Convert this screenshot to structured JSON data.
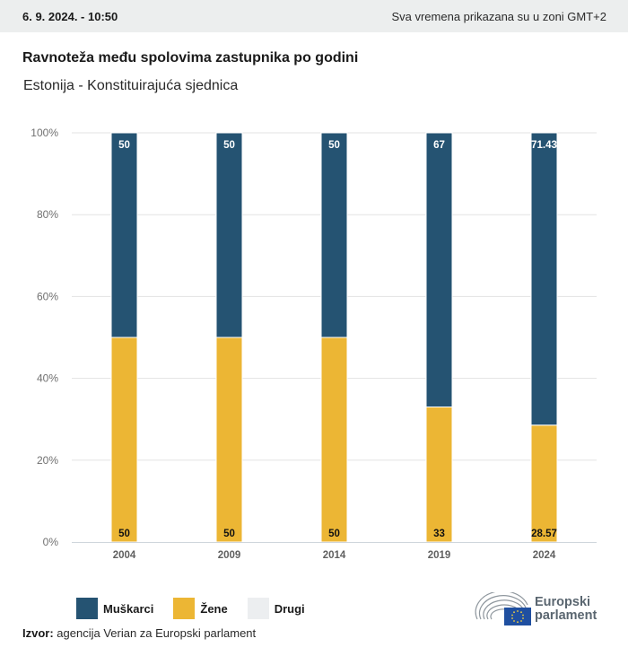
{
  "topbar": {
    "date": "6. 9. 2024. - 10:50",
    "timezone_note": "Sva vremena prikazana su u zoni GMT+2"
  },
  "header": {
    "title": "Ravnoteža među spolovima zastupnika po godini",
    "subtitle": "Estonija - Konstituirajuća sjednica"
  },
  "colors": {
    "men": "#255372",
    "women": "#ecb634",
    "other": "#eceef0",
    "grid": "#e3e3e3",
    "axis": "#cfd6dc"
  },
  "chart_data": {
    "type": "bar",
    "stacked": true,
    "title": "Ravnoteža među spolovima zastupnika po godini",
    "subtitle": "Estonija - Konstituirajuća sjednica",
    "categories": [
      "2004",
      "2009",
      "2014",
      "2019",
      "2024"
    ],
    "series": [
      {
        "name": "Žene",
        "key": "women",
        "values": [
          50,
          50,
          50,
          33,
          28.57
        ],
        "labels": [
          "50",
          "50",
          "50",
          "33",
          "28.57"
        ]
      },
      {
        "name": "Muškarci",
        "key": "men",
        "values": [
          50,
          50,
          50,
          67,
          71.43
        ],
        "labels": [
          "50",
          "50",
          "50",
          "67",
          "71.43"
        ]
      },
      {
        "name": "Drugi",
        "key": "other",
        "values": [
          0,
          0,
          0,
          0,
          0
        ]
      }
    ],
    "yticks": [
      "0%",
      "20%",
      "40%",
      "60%",
      "80%",
      "100%"
    ],
    "ytick_values": [
      0,
      20,
      40,
      60,
      80,
      100
    ],
    "ylim": [
      0,
      100
    ],
    "xlabel": "",
    "ylabel": "",
    "grid": true,
    "legend": "bottom-left"
  },
  "legend": {
    "items": [
      {
        "label": "Muškarci",
        "color": "#255372"
      },
      {
        "label": "Žene",
        "color": "#ecb634"
      },
      {
        "label": "Drugi",
        "color": "#eceef0"
      }
    ]
  },
  "footer": {
    "source_label": "Izvor:",
    "source_text": " agencija Verian za Europski parlament",
    "logo_line1": "Europski",
    "logo_line2": "parlament"
  }
}
